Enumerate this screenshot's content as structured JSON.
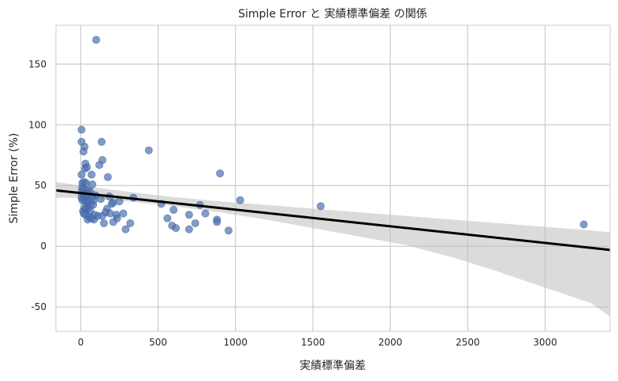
{
  "chart_data": {
    "type": "scatter",
    "title": "Simple Error と 実績標準偏差 の関係",
    "xlabel": "実績標準偏差",
    "ylabel": "Simple Error (%)",
    "xlim": [
      -160,
      3420
    ],
    "ylim": [
      -70,
      182
    ],
    "xticks": [
      0,
      500,
      1000,
      1500,
      2000,
      2500,
      3000
    ],
    "xtick_labels": [
      "0",
      "500",
      "1000",
      "1500",
      "2000",
      "2500",
      "3000"
    ],
    "yticks": [
      -50,
      0,
      50,
      100,
      150
    ],
    "ytick_labels": [
      "-50",
      "0",
      "50",
      "100",
      "150"
    ],
    "grid": true,
    "legend": "none",
    "colors": {
      "points": "#4c72b0",
      "regression": "#000000",
      "band": "#bdbdbd"
    },
    "points": [
      {
        "x": 100,
        "y": 170
      },
      {
        "x": 5,
        "y": 96
      },
      {
        "x": 5,
        "y": 86
      },
      {
        "x": 25,
        "y": 82
      },
      {
        "x": 18,
        "y": 78
      },
      {
        "x": 135,
        "y": 86
      },
      {
        "x": 140,
        "y": 71
      },
      {
        "x": 440,
        "y": 79
      },
      {
        "x": 30,
        "y": 68
      },
      {
        "x": 28,
        "y": 64
      },
      {
        "x": 40,
        "y": 65
      },
      {
        "x": 120,
        "y": 67
      },
      {
        "x": 70,
        "y": 59
      },
      {
        "x": 5,
        "y": 59
      },
      {
        "x": 175,
        "y": 57
      },
      {
        "x": 900,
        "y": 60
      },
      {
        "x": 10,
        "y": 52
      },
      {
        "x": 22,
        "y": 53
      },
      {
        "x": 35,
        "y": 52
      },
      {
        "x": 75,
        "y": 51
      },
      {
        "x": 8,
        "y": 48
      },
      {
        "x": 18,
        "y": 47
      },
      {
        "x": 45,
        "y": 46
      },
      {
        "x": 60,
        "y": 45
      },
      {
        "x": 5,
        "y": 44
      },
      {
        "x": 28,
        "y": 43
      },
      {
        "x": 50,
        "y": 43
      },
      {
        "x": 95,
        "y": 42
      },
      {
        "x": 5,
        "y": 40
      },
      {
        "x": 20,
        "y": 40
      },
      {
        "x": 40,
        "y": 41
      },
      {
        "x": 75,
        "y": 40
      },
      {
        "x": 185,
        "y": 41
      },
      {
        "x": 340,
        "y": 40
      },
      {
        "x": 10,
        "y": 38
      },
      {
        "x": 30,
        "y": 37
      },
      {
        "x": 55,
        "y": 37
      },
      {
        "x": 85,
        "y": 38
      },
      {
        "x": 130,
        "y": 39
      },
      {
        "x": 210,
        "y": 36
      },
      {
        "x": 250,
        "y": 37
      },
      {
        "x": 1030,
        "y": 38
      },
      {
        "x": 40,
        "y": 35
      },
      {
        "x": 65,
        "y": 34
      },
      {
        "x": 80,
        "y": 34
      },
      {
        "x": 200,
        "y": 35
      },
      {
        "x": 520,
        "y": 35
      },
      {
        "x": 770,
        "y": 34
      },
      {
        "x": 1550,
        "y": 33
      },
      {
        "x": 25,
        "y": 32
      },
      {
        "x": 45,
        "y": 31
      },
      {
        "x": 170,
        "y": 31
      },
      {
        "x": 15,
        "y": 29
      },
      {
        "x": 35,
        "y": 30
      },
      {
        "x": 60,
        "y": 29
      },
      {
        "x": 600,
        "y": 30
      },
      {
        "x": 20,
        "y": 27
      },
      {
        "x": 30,
        "y": 26
      },
      {
        "x": 90,
        "y": 26
      },
      {
        "x": 160,
        "y": 28
      },
      {
        "x": 190,
        "y": 27
      },
      {
        "x": 230,
        "y": 26
      },
      {
        "x": 275,
        "y": 27
      },
      {
        "x": 700,
        "y": 26
      },
      {
        "x": 805,
        "y": 27
      },
      {
        "x": 45,
        "y": 22
      },
      {
        "x": 55,
        "y": 24
      },
      {
        "x": 70,
        "y": 23
      },
      {
        "x": 85,
        "y": 22
      },
      {
        "x": 110,
        "y": 25
      },
      {
        "x": 140,
        "y": 25
      },
      {
        "x": 235,
        "y": 23
      },
      {
        "x": 560,
        "y": 23
      },
      {
        "x": 880,
        "y": 22
      },
      {
        "x": 150,
        "y": 19
      },
      {
        "x": 210,
        "y": 20
      },
      {
        "x": 320,
        "y": 19
      },
      {
        "x": 590,
        "y": 17
      },
      {
        "x": 740,
        "y": 19
      },
      {
        "x": 880,
        "y": 20
      },
      {
        "x": 290,
        "y": 14
      },
      {
        "x": 615,
        "y": 15
      },
      {
        "x": 700,
        "y": 14
      },
      {
        "x": 955,
        "y": 13
      },
      {
        "x": 3250,
        "y": 18
      }
    ],
    "regression": {
      "x": [
        -160,
        3420
      ],
      "y": [
        46,
        -3
      ],
      "band": {
        "x": [
          -160,
          0,
          300,
          600,
          900,
          1200,
          1500,
          1800,
          2100,
          2400,
          2700,
          3000,
          3300,
          3420
        ],
        "upper": [
          53,
          50,
          45,
          40.5,
          37,
          34,
          31,
          28,
          25,
          22,
          19,
          16,
          13,
          11.5
        ],
        "lower": [
          40,
          40,
          37,
          33,
          28,
          22,
          15,
          8,
          1,
          -9,
          -21,
          -34,
          -47,
          -58
        ]
      }
    }
  }
}
